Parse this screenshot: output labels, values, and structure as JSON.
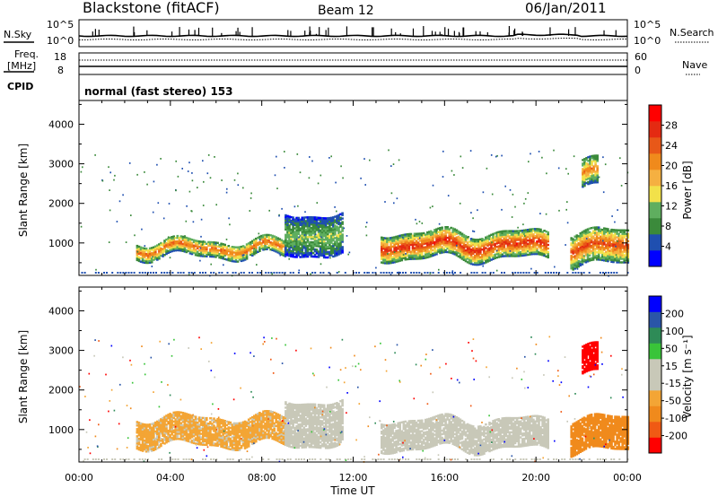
{
  "header": {
    "station": "Blackstone (fitACF)",
    "beam": "Beam 12",
    "date": "06/Jan/2011"
  },
  "top_panels": {
    "nsky_label": "N.Sky",
    "nsky_ticks": [
      "10^5",
      "10^0"
    ],
    "nsearch_label": "N.Search",
    "nsearch_ticks": [
      "10^5",
      "10^0"
    ],
    "freq_label": "Freq.",
    "freq_unit": "[MHz]",
    "freq_ticks": [
      "18",
      "8"
    ],
    "nave_label": "Nave",
    "nave_ticks": [
      "60",
      "0"
    ],
    "cpid_label": "CPID",
    "cpid_text": "normal (fast stereo) 153"
  },
  "colors": {
    "power": [
      "#0000ff",
      "#1f4fb0",
      "#3b8a3b",
      "#5fae5f",
      "#f2e14a",
      "#f5b041",
      "#f08a1c",
      "#e85818",
      "#e42a12",
      "#ff0000"
    ],
    "velocity": [
      "#ff0000",
      "#f05a14",
      "#f08a1c",
      "#f3a535",
      "#c8c8b8",
      "#c8c8b8",
      "#39c439",
      "#2e8b57",
      "#2a55a8",
      "#0000ff"
    ]
  },
  "chart_data": [
    {
      "type": "heatmap",
      "quantity": "Power",
      "ylabel": "Slant Range [km]",
      "xlabel": "Time UT",
      "x_ticks": [
        "00:00",
        "04:00",
        "08:00",
        "12:00",
        "16:00",
        "20:00",
        "00:00"
      ],
      "x_hours": [
        0,
        4,
        8,
        12,
        16,
        20,
        24
      ],
      "y_ticks": [
        1000,
        2000,
        3000,
        4000
      ],
      "ylim": [
        180,
        4600
      ],
      "colorbar": {
        "label": "Power [dB]",
        "ticks": [
          4,
          8,
          12,
          16,
          20,
          24,
          28
        ],
        "range": [
          0,
          30
        ]
      },
      "bands": [
        {
          "t0": 2.5,
          "t1": 9.0,
          "lower": 650,
          "upper": 1050,
          "peak": 22
        },
        {
          "t0": 9.0,
          "t1": 11.5,
          "lower": 700,
          "upper": 1700,
          "peak": 12
        },
        {
          "t0": 13.2,
          "t1": 20.5,
          "lower": 600,
          "upper": 1250,
          "peak": 26
        },
        {
          "t0": 21.5,
          "t1": 24.0,
          "lower": 450,
          "upper": 1300,
          "peak": 24
        },
        {
          "t0": 22.0,
          "t1": 22.7,
          "lower": 2400,
          "upper": 3100,
          "peak": 20
        }
      ]
    },
    {
      "type": "heatmap",
      "quantity": "Velocity",
      "ylabel": "Slant Range [km]",
      "xlabel": "Time UT",
      "x_ticks": [
        "00:00",
        "04:00",
        "08:00",
        "12:00",
        "16:00",
        "20:00",
        "00:00"
      ],
      "x_hours": [
        0,
        4,
        8,
        12,
        16,
        20,
        24
      ],
      "y_ticks": [
        1000,
        2000,
        3000,
        4000
      ],
      "ylim": [
        180,
        4600
      ],
      "colorbar": {
        "label": "Velocity [m s⁻¹]",
        "ticks": [
          "200",
          "100",
          "50",
          "15",
          "-15",
          "-50",
          "-100",
          "-200"
        ],
        "range": [
          -250,
          250
        ]
      },
      "bands": [
        {
          "t0": 2.5,
          "t1": 9.0,
          "lower": 600,
          "upper": 1300,
          "value": -60
        },
        {
          "t0": 9.0,
          "t1": 11.5,
          "lower": 600,
          "upper": 1700,
          "value": 0
        },
        {
          "t0": 13.2,
          "t1": 20.5,
          "lower": 500,
          "upper": 1250,
          "value": 0
        },
        {
          "t0": 21.5,
          "t1": 24.0,
          "lower": 450,
          "upper": 1300,
          "value": -120
        },
        {
          "t0": 22.0,
          "t1": 22.7,
          "lower": 2400,
          "upper": 3100,
          "value": -220
        }
      ]
    }
  ]
}
